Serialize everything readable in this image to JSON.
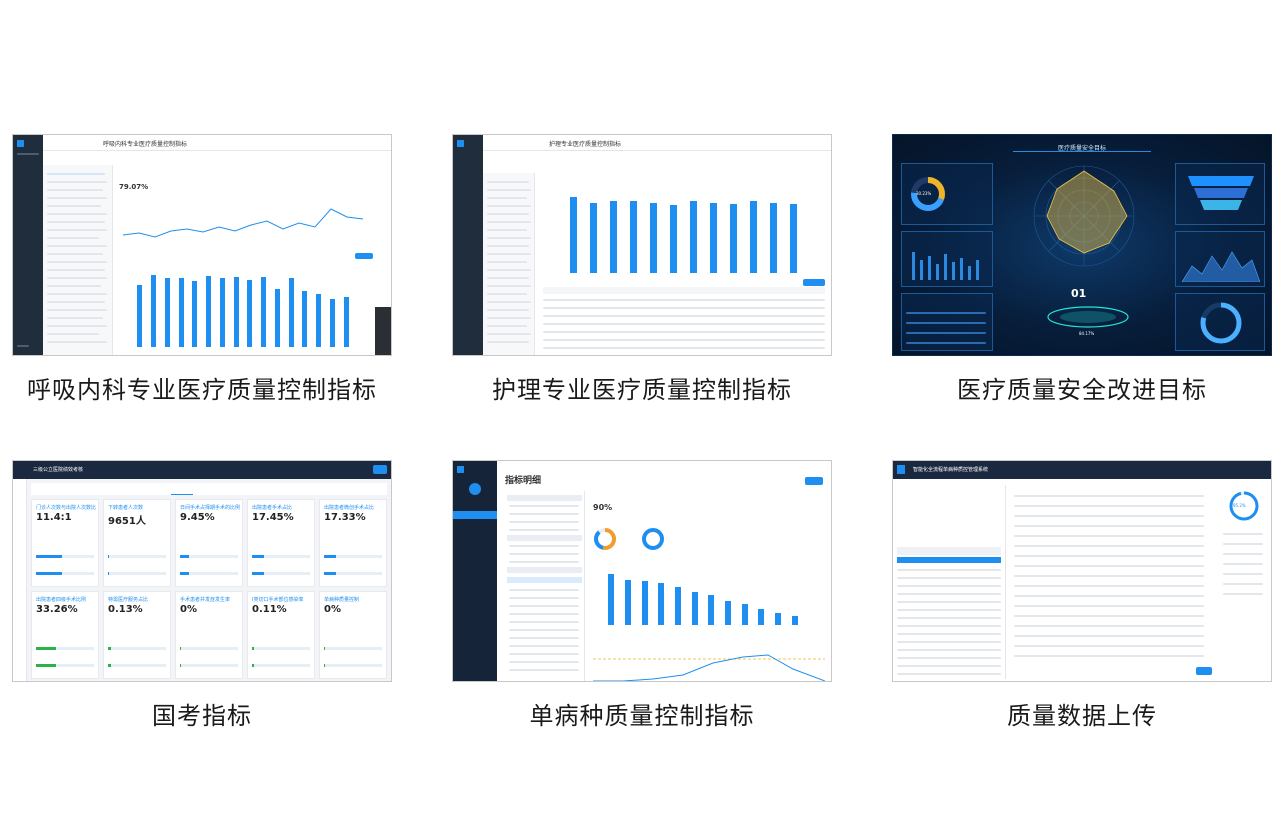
{
  "tiles": [
    {
      "caption": "呼吸内科专业医疗质量控制指标",
      "header_title": "呼吸内科专业医疗质量控制指标",
      "metric_value": "79.07%",
      "bars": [
        0.78,
        0.9,
        0.86,
        0.86,
        0.82,
        0.89,
        0.86,
        0.88,
        0.84,
        0.87,
        0.72,
        0.86,
        0.7,
        0.66,
        0.6,
        0.62
      ]
    },
    {
      "caption": "护理专业医疗质量控制指标",
      "header_title": "护理专业医疗质量控制指标",
      "bars": [
        0.95,
        0.88,
        0.9,
        0.9,
        0.88,
        0.85,
        0.9,
        0.88,
        0.86,
        0.9,
        0.88,
        0.86
      ]
    },
    {
      "caption": "医疗质量安全改进目标",
      "header_title": "医疗质量安全目标",
      "center_number": "01",
      "ring_pct": "30.23%",
      "small_pct": "84.17%"
    },
    {
      "caption": "国考指标",
      "header_title": "三级公立医院绩效考核",
      "cards": [
        {
          "title": "门诊人次数与出院人次数比",
          "value": "11.4:1",
          "color": "#1e8ff0",
          "fill": 0.45
        },
        {
          "title": "下转患者人次数",
          "value": "9651人",
          "color": "#1e8ff0",
          "fill": 0.0
        },
        {
          "title": "日间手术占择期手术的比例",
          "value": "9.45%",
          "color": "#1e8ff0",
          "fill": 0.15
        },
        {
          "title": "出院患者手术占比",
          "value": "17.45%",
          "color": "#1e8ff0",
          "fill": 0.2
        },
        {
          "title": "出院患者微创手术占比",
          "value": "17.33%",
          "color": "#1e8ff0",
          "fill": 0.2
        },
        {
          "title": "出院患者四级手术比例",
          "value": "33.26%",
          "color": "#2bb34a",
          "fill": 0.35
        },
        {
          "title": "特需医疗服务占比",
          "value": "0.13%",
          "color": "#2bb34a",
          "fill": 0.05
        },
        {
          "title": "手术患者并发症发生率",
          "value": "0%",
          "color": "#2bb34a",
          "fill": 0.02
        },
        {
          "title": "Ⅰ类切口手术部位感染率",
          "value": "0.11%",
          "color": "#2bb34a",
          "fill": 0.04
        },
        {
          "title": "单病种质量控制",
          "value": "0%",
          "color": "#2bb34a",
          "fill": 0.02
        }
      ]
    },
    {
      "caption": "单病种质量控制指标",
      "header_title": "指标明细",
      "metric_value": "90%",
      "bars": [
        0.95,
        0.84,
        0.82,
        0.78,
        0.7,
        0.62,
        0.55,
        0.45,
        0.38,
        0.3,
        0.22,
        0.16
      ]
    },
    {
      "caption": "质量数据上传",
      "header_title": "智能化全流程单病种质控管理系统",
      "side_pct": "95.2%"
    }
  ]
}
